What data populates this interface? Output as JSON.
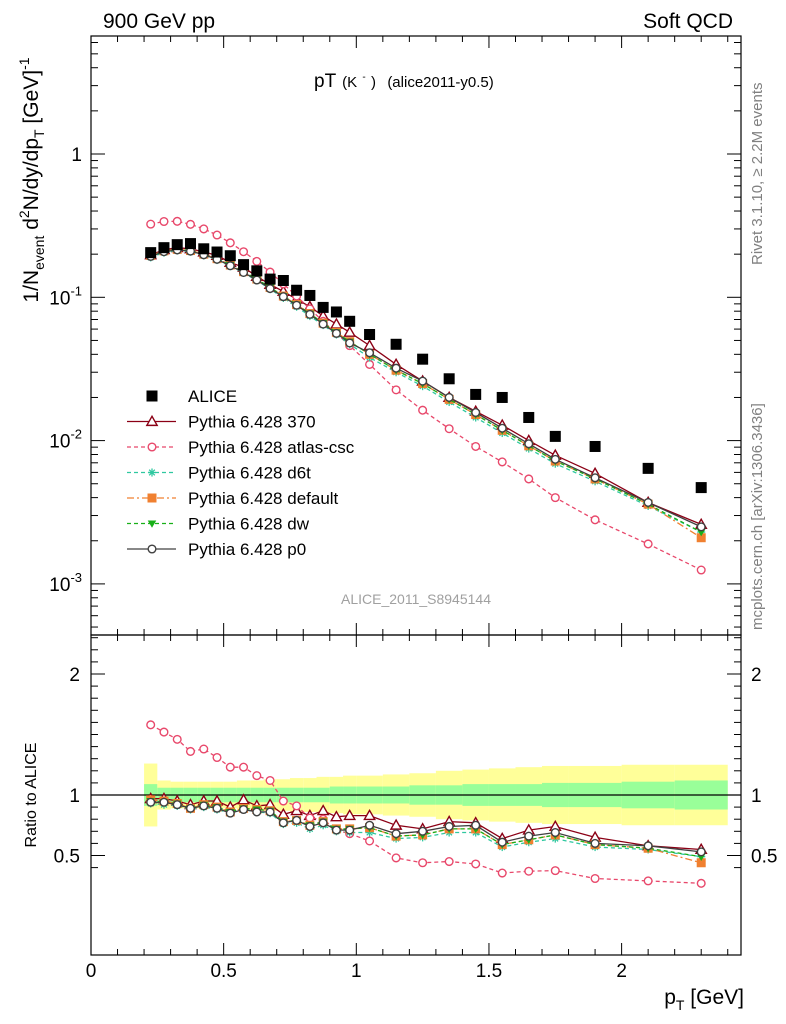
{
  "header": {
    "left": "900 GeV pp",
    "right": "Soft QCD"
  },
  "title_main": "pT",
  "title_particle": "(K",
  "title_particle_sup": "-",
  "title_particle_close": ")",
  "title_analysis": "(alice2011-y0.5)",
  "ylabel_top": {
    "p1": "1/N",
    "p1_sub": "event",
    "p2": " d",
    "p2_sup": "2",
    "p3": "N/dy/dp",
    "p3_sub": "T",
    "p4": " [GeV]",
    "p4_sup": "-1"
  },
  "ylabel_bottom": "Ratio to ALICE",
  "xlabel": {
    "p1": "p",
    "p1_sub": "T",
    "p2": " [GeV]"
  },
  "side_right_top": "Rivet 3.1.10, ≥ 2.2M events",
  "side_right_bottom": "mcplots.cern.ch [arXiv:1306.3436]",
  "watermark": "ALICE_2011_S8945144",
  "colors": {
    "data": "#000000",
    "p370": "#8b0015",
    "atlas": "#e8486b",
    "d6t": "#2fc8a0",
    "default": "#f08030",
    "dw": "#18b018",
    "p0": "#404040",
    "band_inner": "#99ff99",
    "band_outer": "#ffff99"
  },
  "chart_data": [
    {
      "type": "scatter",
      "panel": "main",
      "yscale": "log",
      "xlim": [
        0,
        2.45
      ],
      "ylim": [
        0.0004,
        6
      ],
      "x_ticklabels": [],
      "y_ticklabels": [
        "1",
        "10^-1",
        "10^-2",
        "10^-3"
      ],
      "x": [
        0.225,
        0.275,
        0.325,
        0.375,
        0.425,
        0.475,
        0.525,
        0.575,
        0.625,
        0.675,
        0.725,
        0.775,
        0.825,
        0.875,
        0.925,
        0.975,
        1.05,
        1.15,
        1.25,
        1.35,
        1.45,
        1.55,
        1.65,
        1.75,
        1.9,
        2.1,
        2.3
      ],
      "series": [
        {
          "name": "ALICE",
          "marker": "square",
          "values": [
            0.205,
            0.222,
            0.233,
            0.237,
            0.218,
            0.207,
            0.195,
            0.169,
            0.153,
            0.134,
            0.131,
            0.112,
            0.103,
            0.085,
            0.079,
            0.068,
            0.055,
            0.047,
            0.037,
            0.027,
            0.021,
            0.02,
            0.0145,
            0.0107,
            0.0091,
            0.0064,
            0.0047
          ]
        },
        {
          "name": "Pythia 6.428 370",
          "marker": "open-triangle",
          "line": "solid",
          "values": [
            0.198,
            0.215,
            0.222,
            0.218,
            0.207,
            0.196,
            0.175,
            0.162,
            0.14,
            0.123,
            0.11,
            0.097,
            0.086,
            0.074,
            0.065,
            0.057,
            0.046,
            0.034,
            0.026,
            0.02,
            0.016,
            0.0128,
            0.01,
            0.0079,
            0.0059,
            0.0037,
            0.0026
          ]
        },
        {
          "name": "Pythia 6.428 atlas-csc",
          "marker": "open-circle",
          "line": "dashed",
          "values": [
            0.324,
            0.338,
            0.339,
            0.323,
            0.3,
            0.272,
            0.24,
            0.208,
            0.178,
            0.15,
            0.124,
            0.102,
            0.083,
            0.068,
            0.056,
            0.046,
            0.034,
            0.0226,
            0.0163,
            0.0121,
            0.0091,
            0.0071,
            0.0054,
            0.004,
            0.0028,
            0.0019,
            0.00125
          ]
        },
        {
          "name": "Pythia 6.428 d6t",
          "marker": "star",
          "line": "dashed",
          "values": [
            0.19,
            0.205,
            0.212,
            0.208,
            0.196,
            0.182,
            0.165,
            0.148,
            0.131,
            0.114,
            0.099,
            0.086,
            0.074,
            0.064,
            0.055,
            0.047,
            0.038,
            0.03,
            0.024,
            0.0186,
            0.0145,
            0.0113,
            0.0088,
            0.0069,
            0.0052,
            0.0035,
            0.0023
          ]
        },
        {
          "name": "Pythia 6.428 default",
          "marker": "filled-square",
          "line": "dashdot",
          "values": [
            0.196,
            0.211,
            0.216,
            0.212,
            0.2,
            0.186,
            0.168,
            0.151,
            0.134,
            0.117,
            0.102,
            0.089,
            0.077,
            0.066,
            0.057,
            0.049,
            0.04,
            0.031,
            0.025,
            0.0194,
            0.0152,
            0.0118,
            0.0092,
            0.0072,
            0.0054,
            0.0036,
            0.0021
          ]
        },
        {
          "name": "Pythia 6.428 dw",
          "marker": "filled-triangle-down",
          "line": "dashed",
          "values": [
            0.194,
            0.209,
            0.216,
            0.212,
            0.2,
            0.186,
            0.168,
            0.151,
            0.134,
            0.117,
            0.102,
            0.089,
            0.077,
            0.066,
            0.057,
            0.049,
            0.04,
            0.031,
            0.025,
            0.0194,
            0.0152,
            0.0118,
            0.0092,
            0.0072,
            0.0054,
            0.0036,
            0.0023
          ]
        },
        {
          "name": "Pythia 6.428 p0",
          "marker": "open-circle",
          "line": "solid",
          "values": [
            0.193,
            0.208,
            0.214,
            0.21,
            0.198,
            0.184,
            0.166,
            0.149,
            0.132,
            0.115,
            0.101,
            0.088,
            0.076,
            0.065,
            0.056,
            0.048,
            0.041,
            0.032,
            0.026,
            0.02,
            0.0157,
            0.0122,
            0.0095,
            0.0074,
            0.0055,
            0.0037,
            0.0025
          ]
        }
      ]
    },
    {
      "type": "line",
      "panel": "ratio",
      "xlim": [
        0,
        2.45
      ],
      "ylim": [
        0.34,
        2.35
      ],
      "xlabel": "p_T [GeV]",
      "ylabel": "Ratio to ALICE",
      "x_ticklabels": [
        "0",
        "0.5",
        "1",
        "1.5",
        "2"
      ],
      "y_ticklabels": [
        "0.5",
        "1",
        "2"
      ],
      "reference_line": 1,
      "band_x_edges": [
        0.2,
        0.25,
        0.3,
        0.35,
        0.4,
        0.45,
        0.5,
        0.55,
        0.6,
        0.65,
        0.7,
        0.75,
        0.8,
        0.85,
        0.9,
        0.95,
        1.0,
        1.1,
        1.2,
        1.3,
        1.4,
        1.5,
        1.6,
        1.7,
        1.8,
        2.0,
        2.2,
        2.4
      ],
      "band_inner_halfwidth": [
        0.09,
        0.06,
        0.06,
        0.06,
        0.06,
        0.06,
        0.06,
        0.06,
        0.06,
        0.06,
        0.06,
        0.06,
        0.06,
        0.06,
        0.07,
        0.07,
        0.07,
        0.07,
        0.08,
        0.08,
        0.09,
        0.09,
        0.09,
        0.1,
        0.1,
        0.11,
        0.12
      ],
      "band_outer_halfwidth": [
        0.26,
        0.12,
        0.11,
        0.11,
        0.11,
        0.11,
        0.11,
        0.12,
        0.12,
        0.13,
        0.13,
        0.14,
        0.14,
        0.15,
        0.15,
        0.16,
        0.16,
        0.17,
        0.18,
        0.2,
        0.21,
        0.22,
        0.23,
        0.24,
        0.24,
        0.25,
        0.25
      ],
      "x": [
        0.225,
        0.275,
        0.325,
        0.375,
        0.425,
        0.475,
        0.525,
        0.575,
        0.625,
        0.675,
        0.725,
        0.775,
        0.825,
        0.875,
        0.925,
        0.975,
        1.05,
        1.15,
        1.25,
        1.35,
        1.45,
        1.55,
        1.65,
        1.75,
        1.9,
        2.1,
        2.3
      ],
      "series": [
        {
          "name": "Pythia 6.428 370",
          "values": [
            0.97,
            0.97,
            0.95,
            0.92,
            0.95,
            0.95,
            0.9,
            0.96,
            0.91,
            0.92,
            0.84,
            0.87,
            0.83,
            0.87,
            0.82,
            0.83,
            0.83,
            0.75,
            0.72,
            0.78,
            0.77,
            0.64,
            0.71,
            0.74,
            0.65,
            0.58,
            0.55
          ]
        },
        {
          "name": "Pythia 6.428 atlas-csc",
          "values": [
            1.58,
            1.52,
            1.46,
            1.36,
            1.38,
            1.31,
            1.23,
            1.23,
            1.16,
            1.12,
            0.95,
            0.91,
            0.81,
            0.8,
            0.71,
            0.68,
            0.62,
            0.48,
            0.44,
            0.45,
            0.43,
            0.355,
            0.37,
            0.375,
            0.31,
            0.29,
            0.27
          ]
        },
        {
          "name": "Pythia 6.428 d6t",
          "values": [
            0.93,
            0.92,
            0.91,
            0.88,
            0.9,
            0.88,
            0.85,
            0.88,
            0.86,
            0.85,
            0.76,
            0.77,
            0.72,
            0.75,
            0.7,
            0.69,
            0.69,
            0.64,
            0.65,
            0.69,
            0.69,
            0.57,
            0.61,
            0.64,
            0.57,
            0.55,
            0.49
          ]
        },
        {
          "name": "Pythia 6.428 default",
          "values": [
            0.96,
            0.95,
            0.93,
            0.89,
            0.92,
            0.9,
            0.86,
            0.89,
            0.88,
            0.87,
            0.78,
            0.79,
            0.75,
            0.78,
            0.72,
            0.72,
            0.73,
            0.66,
            0.67,
            0.72,
            0.72,
            0.59,
            0.63,
            0.67,
            0.59,
            0.56,
            0.44
          ]
        },
        {
          "name": "Pythia 6.428 dw",
          "values": [
            0.95,
            0.94,
            0.93,
            0.89,
            0.92,
            0.9,
            0.86,
            0.89,
            0.88,
            0.87,
            0.78,
            0.79,
            0.75,
            0.78,
            0.72,
            0.72,
            0.73,
            0.66,
            0.67,
            0.72,
            0.72,
            0.59,
            0.63,
            0.67,
            0.59,
            0.56,
            0.49
          ]
        },
        {
          "name": "Pythia 6.428 p0",
          "values": [
            0.94,
            0.94,
            0.92,
            0.89,
            0.91,
            0.89,
            0.85,
            0.88,
            0.86,
            0.86,
            0.77,
            0.79,
            0.74,
            0.77,
            0.71,
            0.71,
            0.75,
            0.68,
            0.7,
            0.74,
            0.75,
            0.61,
            0.66,
            0.69,
            0.6,
            0.58,
            0.53
          ]
        }
      ]
    }
  ]
}
